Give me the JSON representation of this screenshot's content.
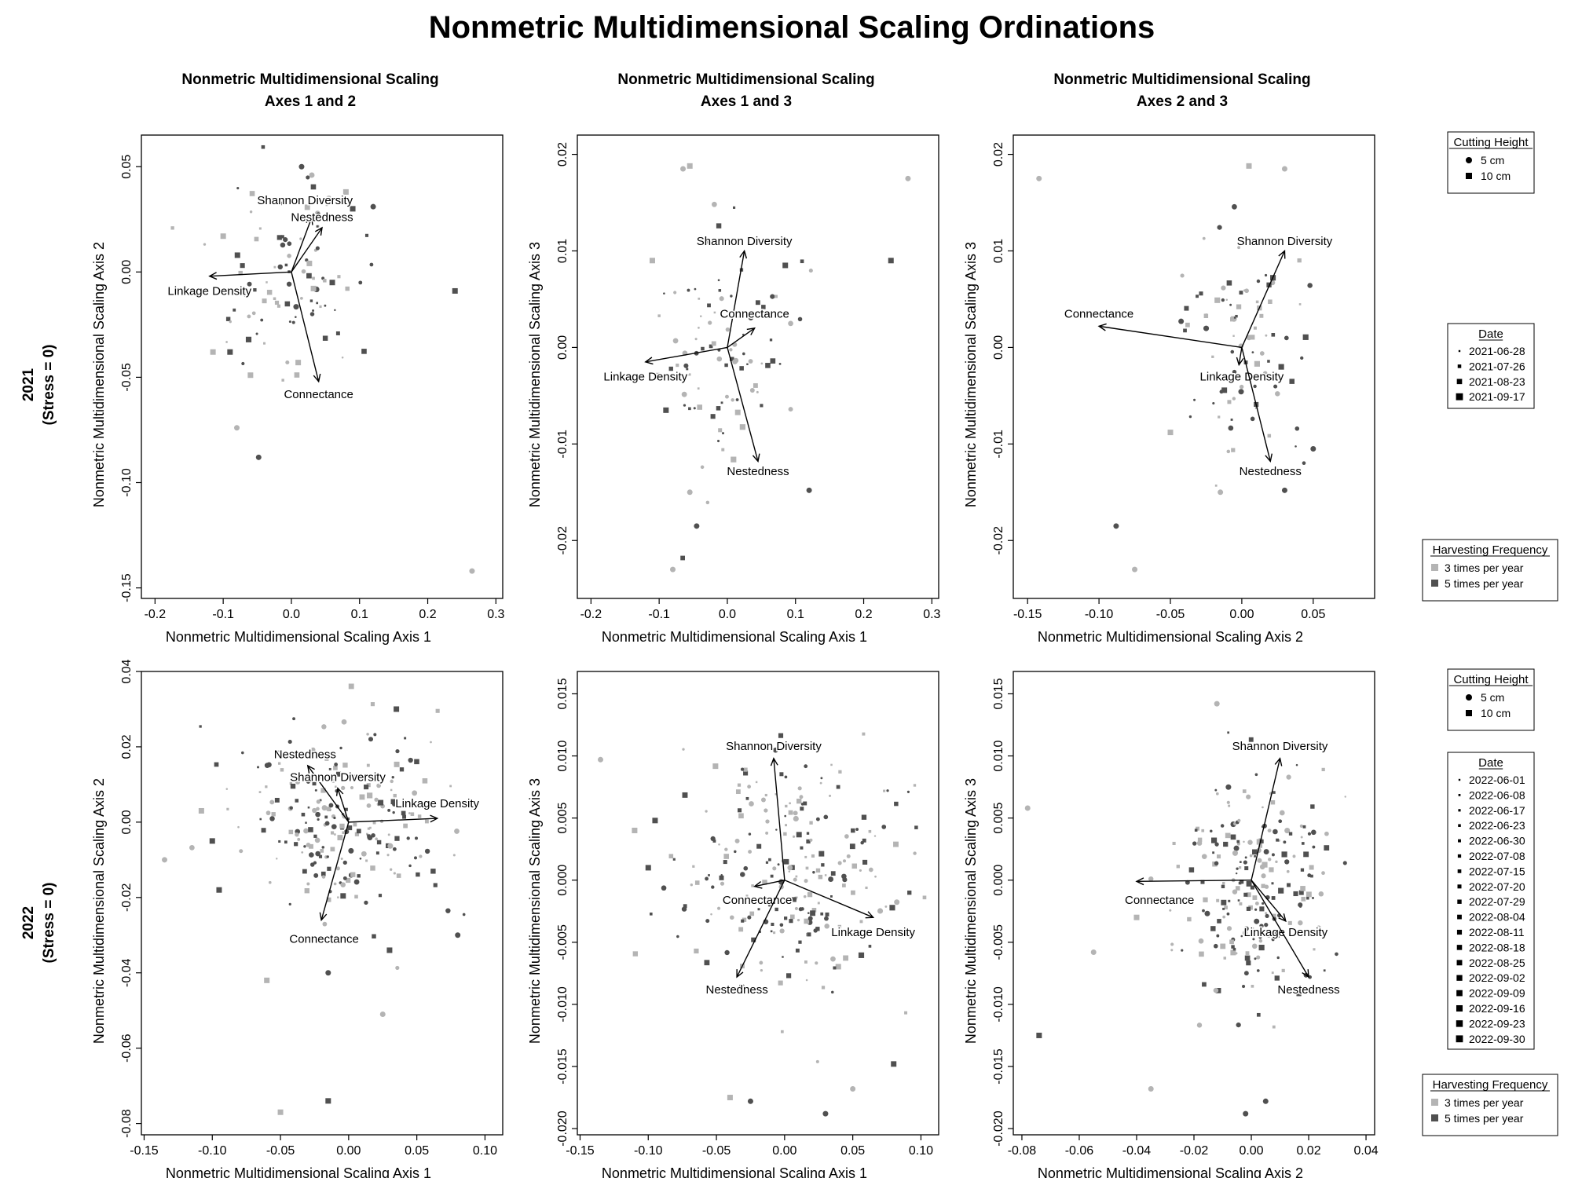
{
  "title": "Nonmetric Multidimensional Scaling Ordinations",
  "row_labels": [
    {
      "year": "2021",
      "stress": "(Stress = 0)"
    },
    {
      "year": "2022",
      "stress": "(Stress = 0)"
    }
  ],
  "colors": {
    "light_gray": "#b4b4b4",
    "dark_gray": "#505050",
    "arrow": "#000000"
  },
  "legends": [
    {
      "cutting_height": {
        "title": "Cutting Height",
        "items": [
          {
            "label": "5 cm",
            "shape": "circle"
          },
          {
            "label": "10 cm",
            "shape": "square"
          }
        ]
      },
      "date": {
        "title": "Date",
        "items": [
          "2021-06-28",
          "2021-07-26",
          "2021-08-23",
          "2021-09-17"
        ]
      },
      "harvesting_frequency": {
        "title": "Harvesting Frequency",
        "items": [
          {
            "label": "3 times per year",
            "color": "#b4b4b4"
          },
          {
            "label": "5 times per year",
            "color": "#505050"
          }
        ]
      }
    },
    {
      "cutting_height": {
        "title": "Cutting Height",
        "items": [
          {
            "label": "5 cm",
            "shape": "circle"
          },
          {
            "label": "10 cm",
            "shape": "square"
          }
        ]
      },
      "date": {
        "title": "Date",
        "items": [
          "2022-06-01",
          "2022-06-08",
          "2022-06-17",
          "2022-06-23",
          "2022-06-30",
          "2022-07-08",
          "2022-07-15",
          "2022-07-20",
          "2022-07-29",
          "2022-08-04",
          "2022-08-11",
          "2022-08-18",
          "2022-08-25",
          "2022-09-02",
          "2022-09-09",
          "2022-09-16",
          "2022-09-23",
          "2022-09-30"
        ]
      },
      "harvesting_frequency": {
        "title": "Harvesting Frequency",
        "items": [
          {
            "label": "3 times per year",
            "color": "#b4b4b4"
          },
          {
            "label": "5 times per year",
            "color": "#505050"
          }
        ]
      }
    }
  ],
  "chart_data": [
    {
      "type": "scatter",
      "title": "Nonmetric Multidimensional Scaling",
      "subtitle": "Axes 1 and 2",
      "xlabel": "Nonmetric Multidimensional Scaling Axis 1",
      "ylabel": "Nonmetric Multidimensional Scaling Axis 2",
      "xlim": [
        -0.22,
        0.31
      ],
      "ylim": [
        -0.155,
        0.065
      ],
      "xticks": [
        -0.2,
        -0.1,
        0.0,
        0.1,
        0.2,
        0.3
      ],
      "xtick_labels": [
        "-0.2",
        "-0.1",
        "0.0",
        "0.1",
        "0.2",
        "0.3"
      ],
      "yticks": [
        -0.15,
        -0.1,
        -0.05,
        0.0,
        0.05
      ],
      "ytick_labels": [
        "-0.15",
        "-0.10",
        "-0.05",
        "0.00",
        "0.05"
      ],
      "point_cloud": {
        "center": [
          0.0,
          0.0
        ],
        "spread": [
          0.055,
          0.025
        ],
        "count": 90,
        "seed": 11
      },
      "points": [
        [
          0.265,
          -0.142,
          "c",
          "l"
        ],
        [
          0.24,
          -0.009,
          "s",
          "d"
        ],
        [
          -0.115,
          -0.038,
          "s",
          "l"
        ],
        [
          -0.09,
          -0.038,
          "s",
          "d"
        ],
        [
          -0.06,
          -0.049,
          "s",
          "l"
        ],
        [
          -0.08,
          -0.074,
          "c",
          "l"
        ],
        [
          -0.048,
          -0.088,
          "c",
          "d"
        ],
        [
          0.01,
          -0.043,
          "s",
          "l"
        ],
        [
          0.015,
          0.05,
          "c",
          "d"
        ],
        [
          0.03,
          0.046,
          "c",
          "l"
        ],
        [
          0.055,
          0.035,
          "c",
          "l"
        ],
        [
          0.09,
          0.03,
          "s",
          "d"
        ],
        [
          0.12,
          0.031,
          "c",
          "d"
        ],
        [
          0.06,
          -0.005,
          "s",
          "d"
        ],
        [
          -0.1,
          0.017,
          "s",
          "l"
        ],
        [
          0.08,
          0.038,
          "s",
          "l"
        ]
      ],
      "vectors": [
        {
          "name": "Shannon Diversity",
          "end": [
            0.03,
            0.026
          ],
          "label_at": [
            0.02,
            0.034
          ]
        },
        {
          "name": "Nestedness",
          "end": [
            0.045,
            0.021
          ],
          "label_at": [
            0.045,
            0.026
          ]
        },
        {
          "name": "Linkage Density",
          "end": [
            -0.12,
            -0.002
          ],
          "label_at": [
            -0.12,
            -0.009
          ]
        },
        {
          "name": "Connectance",
          "end": [
            0.04,
            -0.052
          ],
          "label_at": [
            0.04,
            -0.058
          ]
        }
      ]
    },
    {
      "type": "scatter",
      "title": "Nonmetric Multidimensional Scaling",
      "subtitle": "Axes 1 and 3",
      "xlabel": "Nonmetric Multidimensional Scaling Axis 1",
      "ylabel": "Nonmetric Multidimensional Scaling Axis 3",
      "xlim": [
        -0.22,
        0.31
      ],
      "ylim": [
        -0.026,
        0.022
      ],
      "xticks": [
        -0.2,
        -0.1,
        0.0,
        0.1,
        0.2,
        0.3
      ],
      "xtick_labels": [
        "-0.2",
        "-0.1",
        "0.0",
        "0.1",
        "0.2",
        "0.3"
      ],
      "yticks": [
        -0.02,
        -0.01,
        0.0,
        0.01,
        0.02
      ],
      "ytick_labels": [
        "-0.02",
        "-0.01",
        "0.00",
        "0.01",
        "0.02"
      ],
      "point_cloud": {
        "center": [
          0.0,
          0.0
        ],
        "spread": [
          0.05,
          0.006
        ],
        "count": 90,
        "seed": 23
      },
      "points": [
        [
          0.265,
          0.0175,
          "c",
          "l"
        ],
        [
          0.24,
          0.009,
          "s",
          "d"
        ],
        [
          -0.065,
          0.0185,
          "c",
          "l"
        ],
        [
          -0.055,
          0.0188,
          "s",
          "l"
        ],
        [
          -0.055,
          -0.015,
          "c",
          "l"
        ],
        [
          -0.045,
          -0.0185,
          "c",
          "d"
        ],
        [
          -0.08,
          -0.023,
          "c",
          "l"
        ],
        [
          0.12,
          -0.0148,
          "c",
          "d"
        ],
        [
          0.085,
          0.0085,
          "s",
          "d"
        ],
        [
          -0.11,
          0.009,
          "s",
          "l"
        ],
        [
          -0.09,
          -0.0065,
          "s",
          "d"
        ]
      ],
      "vectors": [
        {
          "name": "Shannon Diversity",
          "end": [
            0.025,
            0.01
          ],
          "label_at": [
            0.025,
            0.011
          ]
        },
        {
          "name": "Connectance",
          "end": [
            0.04,
            0.002
          ],
          "label_at": [
            0.04,
            0.0035
          ]
        },
        {
          "name": "Linkage Density",
          "end": [
            -0.12,
            -0.0015
          ],
          "label_at": [
            -0.12,
            -0.003
          ]
        },
        {
          "name": "Nestedness",
          "end": [
            0.045,
            -0.0118
          ],
          "label_at": [
            0.045,
            -0.0128
          ]
        }
      ]
    },
    {
      "type": "scatter",
      "title": "Nonmetric Multidimensional Scaling",
      "subtitle": "Axes 2 and 3",
      "xlabel": "Nonmetric Multidimensional Scaling Axis 2",
      "ylabel": "Nonmetric Multidimensional Scaling Axis 3",
      "xlim": [
        -0.16,
        0.093
      ],
      "ylim": [
        -0.026,
        0.022
      ],
      "xticks": [
        -0.15,
        -0.1,
        -0.05,
        0.0,
        0.05
      ],
      "xtick_labels": [
        "-0.15",
        "-0.10",
        "-0.05",
        "0.00",
        "0.05"
      ],
      "yticks": [
        -0.02,
        -0.01,
        0.0,
        0.01,
        0.02
      ],
      "ytick_labels": [
        "-0.02",
        "-0.01",
        "0.00",
        "0.01",
        "0.02"
      ],
      "point_cloud": {
        "center": [
          0.0,
          0.0
        ],
        "spread": [
          0.024,
          0.006
        ],
        "count": 90,
        "seed": 37
      },
      "points": [
        [
          -0.142,
          0.0175,
          "c",
          "l"
        ],
        [
          0.005,
          0.0188,
          "s",
          "l"
        ],
        [
          0.03,
          0.0185,
          "c",
          "l"
        ],
        [
          -0.088,
          -0.0185,
          "c",
          "d"
        ],
        [
          -0.075,
          -0.023,
          "c",
          "l"
        ],
        [
          -0.015,
          -0.015,
          "c",
          "l"
        ],
        [
          0.03,
          -0.0148,
          "c",
          "d"
        ],
        [
          -0.05,
          -0.0088,
          "s",
          "l"
        ],
        [
          0.05,
          -0.0105,
          "c",
          "d"
        ]
      ],
      "vectors": [
        {
          "name": "Shannon Diversity",
          "end": [
            0.03,
            0.01
          ],
          "label_at": [
            0.03,
            0.011
          ]
        },
        {
          "name": "Connectance",
          "end": [
            -0.1,
            0.0022
          ],
          "label_at": [
            -0.1,
            0.0035
          ]
        },
        {
          "name": "Linkage Density",
          "end": [
            -0.002,
            -0.0018
          ],
          "label_at": [
            0.0,
            -0.003
          ]
        },
        {
          "name": "Nestedness",
          "end": [
            0.02,
            -0.0118
          ],
          "label_at": [
            0.02,
            -0.0128
          ]
        }
      ]
    },
    {
      "type": "scatter",
      "title": "",
      "subtitle": "",
      "xlabel": "Nonmetric Multidimensional Scaling Axis 1",
      "ylabel": "Nonmetric Multidimensional Scaling Axis 2",
      "xlim": [
        -0.152,
        0.113
      ],
      "ylim": [
        -0.083,
        0.04
      ],
      "xticks": [
        -0.15,
        -0.1,
        -0.05,
        0.0,
        0.05,
        0.1
      ],
      "xtick_labels": [
        "-0.15",
        "-0.10",
        "-0.05",
        "0.00",
        "0.05",
        "0.10"
      ],
      "yticks": [
        -0.08,
        -0.06,
        -0.04,
        -0.02,
        0.0,
        0.02,
        0.04
      ],
      "ytick_labels": [
        "-0.08",
        "-0.06",
        "-0.04",
        "-0.02",
        "0.00",
        "0.02",
        "0.04"
      ],
      "point_cloud": {
        "center": [
          0.0,
          0.0
        ],
        "spread": [
          0.036,
          0.013
        ],
        "count": 230,
        "seed": 51
      },
      "points": [
        [
          -0.135,
          -0.01,
          "c",
          "l"
        ],
        [
          -0.108,
          0.003,
          "s",
          "l"
        ],
        [
          -0.1,
          -0.005,
          "s",
          "d"
        ],
        [
          -0.095,
          -0.018,
          "s",
          "d"
        ],
        [
          -0.06,
          -0.042,
          "s",
          "l"
        ],
        [
          -0.05,
          -0.077,
          "s",
          "l"
        ],
        [
          -0.015,
          -0.074,
          "s",
          "d"
        ],
        [
          -0.015,
          -0.04,
          "c",
          "d"
        ],
        [
          0.025,
          -0.051,
          "c",
          "l"
        ],
        [
          0.08,
          -0.03,
          "c",
          "d"
        ],
        [
          0.03,
          -0.034,
          "s",
          "d"
        ],
        [
          0.035,
          0.03,
          "s",
          "d"
        ]
      ],
      "vectors": [
        {
          "name": "Nestedness",
          "end": [
            -0.03,
            0.015
          ],
          "label_at": [
            -0.032,
            0.018
          ]
        },
        {
          "name": "Shannon Diversity",
          "end": [
            -0.008,
            0.009
          ],
          "label_at": [
            -0.008,
            0.012
          ]
        },
        {
          "name": "Linkage Density",
          "end": [
            0.065,
            0.001
          ],
          "label_at": [
            0.065,
            0.005
          ]
        },
        {
          "name": "Connectance",
          "end": [
            -0.02,
            -0.026
          ],
          "label_at": [
            -0.018,
            -0.031
          ]
        }
      ]
    },
    {
      "type": "scatter",
      "title": "",
      "subtitle": "",
      "xlabel": "Nonmetric Multidimensional Scaling Axis 1",
      "ylabel": "Nonmetric Multidimensional Scaling Axis 3",
      "xlim": [
        -0.152,
        0.113
      ],
      "ylim": [
        -0.0205,
        0.0168
      ],
      "xticks": [
        -0.15,
        -0.1,
        -0.05,
        0.0,
        0.05,
        0.1
      ],
      "xtick_labels": [
        "-0.15",
        "-0.10",
        "-0.05",
        "0.00",
        "0.05",
        "0.10"
      ],
      "yticks": [
        -0.02,
        -0.015,
        -0.01,
        -0.005,
        0.0,
        0.005,
        0.01,
        0.015
      ],
      "ytick_labels": [
        "-0.020",
        "-0.015",
        "-0.010",
        "-0.005",
        "0.000",
        "0.005",
        "0.010",
        "0.015"
      ],
      "point_cloud": {
        "center": [
          0.0,
          0.0
        ],
        "spread": [
          0.036,
          0.0045
        ],
        "count": 230,
        "seed": 67
      },
      "points": [
        [
          -0.135,
          0.0097,
          "c",
          "l"
        ],
        [
          -0.11,
          0.004,
          "s",
          "l"
        ],
        [
          -0.1,
          0.001,
          "s",
          "d"
        ],
        [
          -0.095,
          0.0048,
          "s",
          "d"
        ],
        [
          -0.04,
          -0.0175,
          "s",
          "l"
        ],
        [
          0.03,
          -0.0188,
          "c",
          "d"
        ],
        [
          0.05,
          -0.0168,
          "c",
          "l"
        ],
        [
          0.08,
          -0.0148,
          "s",
          "d"
        ],
        [
          -0.025,
          -0.0178,
          "c",
          "d"
        ]
      ],
      "vectors": [
        {
          "name": "Shannon Diversity",
          "end": [
            -0.008,
            0.0098
          ],
          "label_at": [
            -0.008,
            0.0108
          ]
        },
        {
          "name": "Connectance",
          "end": [
            -0.022,
            -0.0005
          ],
          "label_at": [
            -0.02,
            -0.0016
          ]
        },
        {
          "name": "Linkage Density",
          "end": [
            0.065,
            -0.003
          ],
          "label_at": [
            0.065,
            -0.0042
          ]
        },
        {
          "name": "Nestedness",
          "end": [
            -0.035,
            -0.0078
          ],
          "label_at": [
            -0.035,
            -0.0088
          ]
        }
      ]
    },
    {
      "type": "scatter",
      "title": "",
      "subtitle": "",
      "xlabel": "Nonmetric Multidimensional Scaling Axis 2",
      "ylabel": "Nonmetric Multidimensional Scaling Axis 3",
      "xlim": [
        -0.083,
        0.043
      ],
      "ylim": [
        -0.0205,
        0.0168
      ],
      "xticks": [
        -0.08,
        -0.06,
        -0.04,
        -0.02,
        0.0,
        0.02,
        0.04
      ],
      "xtick_labels": [
        "-0.08",
        "-0.06",
        "-0.04",
        "-0.02",
        "0.00",
        "0.02",
        "0.04"
      ],
      "yticks": [
        -0.02,
        -0.015,
        -0.01,
        -0.005,
        0.0,
        0.005,
        0.01,
        0.015
      ],
      "ytick_labels": [
        "-0.020",
        "-0.015",
        "-0.010",
        "-0.005",
        "0.000",
        "0.005",
        "0.010",
        "0.015"
      ],
      "point_cloud": {
        "center": [
          0.0,
          0.0
        ],
        "spread": [
          0.013,
          0.0045
        ],
        "count": 230,
        "seed": 83
      },
      "points": [
        [
          -0.078,
          0.0058,
          "c",
          "l"
        ],
        [
          -0.074,
          -0.0125,
          "s",
          "d"
        ],
        [
          -0.055,
          -0.0058,
          "c",
          "l"
        ],
        [
          -0.035,
          -0.0168,
          "c",
          "l"
        ],
        [
          -0.002,
          -0.0188,
          "c",
          "d"
        ],
        [
          0.005,
          -0.0178,
          "c",
          "d"
        ],
        [
          -0.04,
          -0.003,
          "s",
          "l"
        ],
        [
          -0.012,
          0.0142,
          "c",
          "l"
        ]
      ],
      "vectors": [
        {
          "name": "Shannon Diversity",
          "end": [
            0.01,
            0.0098
          ],
          "label_at": [
            0.01,
            0.0108
          ]
        },
        {
          "name": "Connectance",
          "end": [
            -0.04,
            -0.0001
          ],
          "label_at": [
            -0.032,
            -0.0016
          ]
        },
        {
          "name": "Linkage Density",
          "end": [
            0.012,
            -0.0033
          ],
          "label_at": [
            0.012,
            -0.0042
          ]
        },
        {
          "name": "Nestedness",
          "end": [
            0.02,
            -0.0078
          ],
          "label_at": [
            0.02,
            -0.0088
          ]
        }
      ]
    }
  ]
}
